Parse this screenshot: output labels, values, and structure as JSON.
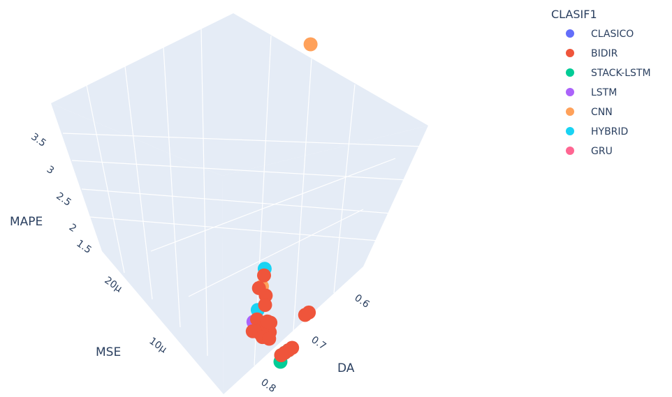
{
  "chart_data": {
    "type": "scatter3d",
    "axes": {
      "x": {
        "label": "DA",
        "ticks": [
          "0.6",
          "0.7",
          "0.8"
        ]
      },
      "y": {
        "label": "MSE",
        "ticks": [
          "10μ",
          "20μ"
        ]
      },
      "z": {
        "label": "MAPE",
        "ticks": [
          "1.5",
          "2",
          "2.5",
          "3",
          "3.5"
        ]
      }
    },
    "legend": {
      "title": "CLASIF1",
      "position": "top-right",
      "entries": [
        {
          "name": "CLASICO",
          "color": "#636efa"
        },
        {
          "name": "BIDIR",
          "color": "#ef553b"
        },
        {
          "name": "STACK-LSTM",
          "color": "#00cc96"
        },
        {
          "name": "LSTM",
          "color": "#ab63fa"
        },
        {
          "name": "CNN",
          "color": "#ffa15a"
        },
        {
          "name": "HYBRID",
          "color": "#19d3f3"
        },
        {
          "name": "GRU",
          "color": "#ff6692"
        }
      ]
    },
    "series": [
      {
        "name": "CNN",
        "points": [
          {
            "x": 0.55,
            "y": 2.5e-05,
            "z": 4.0
          },
          {
            "x": 0.76,
            "y": 1.6e-05,
            "z": 1.35
          }
        ]
      },
      {
        "name": "HYBRID",
        "points": [
          {
            "x": 0.72,
            "y": 2e-05,
            "z": 1.2
          },
          {
            "x": 0.78,
            "y": 1.5e-05,
            "z": 1.1
          }
        ]
      },
      {
        "name": "LSTM",
        "points": [
          {
            "x": 0.8,
            "y": 1.4e-05,
            "z": 1.05
          }
        ]
      },
      {
        "name": "STACK-LSTM",
        "points": [
          {
            "x": 0.8,
            "y": 5e-06,
            "z": 1.0
          },
          {
            "x": 0.79,
            "y": 6e-06,
            "z": 1.0
          },
          {
            "x": 0.78,
            "y": 6e-06,
            "z": 1.0
          },
          {
            "x": 0.77,
            "y": 6e-06,
            "z": 1.0
          }
        ]
      },
      {
        "name": "BIDIR",
        "points": [
          {
            "x": 0.73,
            "y": 1.9e-05,
            "z": 1.2
          },
          {
            "x": 0.76,
            "y": 1.7e-05,
            "z": 1.25
          },
          {
            "x": 0.75,
            "y": 1.6e-05,
            "z": 1.15
          },
          {
            "x": 0.76,
            "y": 1.5e-05,
            "z": 1.1
          },
          {
            "x": 0.79,
            "y": 1.4e-05,
            "z": 1.05
          },
          {
            "x": 0.81,
            "y": 1.3e-05,
            "z": 1.0
          },
          {
            "x": 0.8,
            "y": 1.2e-05,
            "z": 1.0
          },
          {
            "x": 0.79,
            "y": 1.2e-05,
            "z": 1.05
          },
          {
            "x": 0.78,
            "y": 1.2e-05,
            "z": 1.05
          },
          {
            "x": 0.8,
            "y": 1.1e-05,
            "z": 1.0
          },
          {
            "x": 0.78,
            "y": 1.1e-05,
            "z": 1.0
          },
          {
            "x": 0.77,
            "y": 1.2e-05,
            "z": 1.05
          },
          {
            "x": 0.79,
            "y": 1e-05,
            "z": 1.0
          },
          {
            "x": 0.77,
            "y": 1.3e-05,
            "z": 1.0
          },
          {
            "x": 0.69,
            "y": 9e-06,
            "z": 1.1
          },
          {
            "x": 0.7,
            "y": 9e-06,
            "z": 1.1
          },
          {
            "x": 0.78,
            "y": 6e-06,
            "z": 1.0
          },
          {
            "x": 0.77,
            "y": 6e-06,
            "z": 1.0
          },
          {
            "x": 0.76,
            "y": 6e-06,
            "z": 1.0
          },
          {
            "x": 0.79,
            "y": 6e-06,
            "z": 1.0
          }
        ]
      }
    ]
  }
}
